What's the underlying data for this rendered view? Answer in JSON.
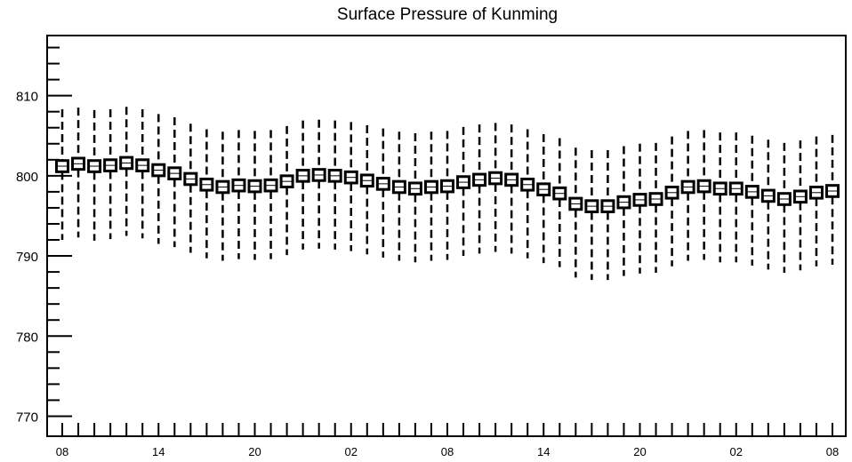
{
  "chart_data": {
    "type": "box",
    "title": "Surface Pressure of Kunming",
    "xlabel": "",
    "ylabel": "",
    "ylim": [
      767.5,
      817.5
    ],
    "yticks": [
      770,
      780,
      790,
      800,
      810
    ],
    "yticks_labels": [
      "770",
      "780",
      "790",
      "800",
      "810"
    ],
    "x_tick_labels": [
      "08",
      "14",
      "20",
      "02",
      "08",
      "14",
      "20",
      "02",
      "08"
    ],
    "x_tick_positions": [
      0,
      6,
      12,
      18,
      24,
      30,
      36,
      42,
      48
    ],
    "grid": false,
    "series": [
      {
        "x": [
          0,
          1,
          2,
          3,
          4,
          5,
          6,
          7,
          8,
          9,
          10,
          11,
          12,
          13,
          14,
          15,
          16,
          17,
          18,
          19,
          20,
          21,
          22,
          23,
          24,
          25,
          26,
          27,
          28,
          29,
          30,
          31,
          32,
          33,
          34,
          35,
          36,
          37,
          38,
          39,
          40,
          41,
          42,
          43,
          44,
          45,
          46,
          47,
          48
        ],
        "median": [
          801.2,
          801.5,
          801.2,
          801.3,
          801.6,
          801.3,
          800.7,
          800.3,
          799.6,
          798.9,
          798.6,
          798.8,
          798.7,
          798.8,
          799.3,
          800.0,
          800.1,
          800.0,
          799.8,
          799.4,
          799.0,
          798.6,
          798.4,
          798.6,
          798.7,
          799.2,
          799.5,
          799.7,
          799.5,
          798.9,
          798.3,
          797.8,
          796.5,
          796.2,
          796.2,
          796.7,
          797.0,
          797.1,
          797.9,
          798.6,
          798.7,
          798.4,
          798.4,
          798.0,
          797.5,
          797.1,
          797.4,
          797.9,
          798.1
        ],
        "q1": [
          800.5,
          800.8,
          800.5,
          800.6,
          800.9,
          800.6,
          800.0,
          799.6,
          798.9,
          798.2,
          797.9,
          798.1,
          798.0,
          798.1,
          798.6,
          799.3,
          799.4,
          799.3,
          799.1,
          798.7,
          798.3,
          797.9,
          797.7,
          797.9,
          798.0,
          798.5,
          798.8,
          799.0,
          798.8,
          798.2,
          797.6,
          797.1,
          795.8,
          795.5,
          795.5,
          796.0,
          796.3,
          796.4,
          797.2,
          797.9,
          798.0,
          797.7,
          797.7,
          797.3,
          796.8,
          796.4,
          796.7,
          797.2,
          797.4
        ],
        "q3": [
          801.9,
          802.2,
          801.9,
          802.0,
          802.3,
          802.0,
          801.4,
          801.0,
          800.3,
          799.6,
          799.3,
          799.5,
          799.4,
          799.5,
          800.0,
          800.7,
          800.8,
          800.7,
          800.5,
          800.1,
          799.7,
          799.3,
          799.1,
          799.3,
          799.4,
          799.9,
          800.2,
          800.4,
          800.2,
          799.6,
          799.0,
          798.5,
          797.2,
          796.9,
          796.9,
          797.4,
          797.7,
          797.8,
          798.6,
          799.3,
          799.4,
          799.1,
          799.1,
          798.7,
          798.2,
          797.8,
          798.1,
          798.6,
          798.8
        ],
        "min": [
          792.0,
          792.3,
          791.9,
          792.1,
          792.5,
          792.2,
          791.5,
          791.1,
          790.4,
          789.7,
          789.4,
          789.6,
          789.5,
          789.6,
          790.1,
          790.8,
          790.9,
          790.8,
          790.6,
          790.2,
          789.8,
          789.4,
          789.2,
          789.4,
          789.5,
          790.0,
          790.3,
          790.5,
          790.3,
          789.7,
          789.1,
          788.6,
          787.3,
          787.0,
          787.0,
          787.5,
          787.8,
          787.9,
          788.7,
          789.4,
          789.5,
          789.2,
          789.2,
          788.8,
          788.3,
          787.9,
          788.2,
          788.7,
          788.9
        ],
        "max": [
          808.3,
          808.5,
          808.2,
          808.3,
          808.6,
          808.3,
          807.7,
          807.3,
          806.5,
          805.8,
          805.5,
          805.7,
          805.6,
          805.7,
          806.2,
          806.9,
          807.0,
          806.9,
          806.7,
          806.3,
          805.9,
          805.5,
          805.3,
          805.5,
          805.6,
          806.1,
          806.4,
          806.6,
          806.4,
          805.8,
          805.2,
          804.7,
          803.5,
          803.2,
          803.2,
          803.7,
          804.0,
          804.1,
          804.9,
          805.6,
          805.7,
          805.4,
          805.4,
          805.0,
          804.5,
          804.1,
          804.4,
          804.9,
          805.1
        ]
      }
    ]
  }
}
